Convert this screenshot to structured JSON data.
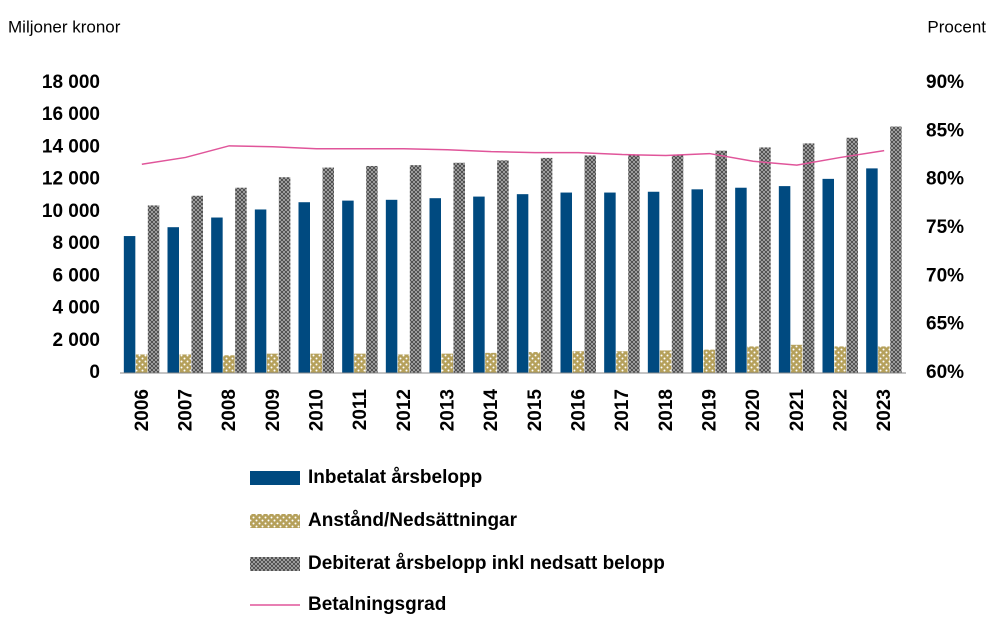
{
  "chart_data": {
    "type": "bar",
    "y_label": "Miljoner kronor",
    "y2_label": "Procent",
    "categories": [
      "2006",
      "2007",
      "2008",
      "2009",
      "2010",
      "2011",
      "2012",
      "2013",
      "2014",
      "2015",
      "2016",
      "2017",
      "2018",
      "2019",
      "2020",
      "2021",
      "2022",
      "2023"
    ],
    "series": [
      {
        "name": "Inbetalat årsbelopp",
        "type": "bar",
        "color": "#004a80",
        "values": [
          8500,
          9050,
          9650,
          10150,
          10600,
          10700,
          10750,
          10850,
          10950,
          11100,
          11200,
          11200,
          11250,
          11400,
          11500,
          11600,
          12050,
          12700
        ]
      },
      {
        "name": "Anstånd/Nedsättningar",
        "type": "bar",
        "color": "#b5a05a",
        "values": [
          1150,
          1150,
          1100,
          1200,
          1200,
          1200,
          1150,
          1200,
          1250,
          1300,
          1350,
          1350,
          1400,
          1450,
          1650,
          1750,
          1650,
          1650
        ]
      },
      {
        "name": "Debiterat årsbelopp inkl nedsatt belopp",
        "type": "bar",
        "color": "#555555",
        "values": [
          10400,
          11000,
          11500,
          12150,
          12750,
          12850,
          12900,
          13050,
          13200,
          13350,
          13500,
          13550,
          13550,
          13800,
          14000,
          14250,
          14600,
          15300
        ]
      },
      {
        "name": "Betalningsgrad",
        "type": "line",
        "axis": "y2",
        "color": "#e0559a",
        "values": [
          81.6,
          82.3,
          83.5,
          83.4,
          83.2,
          83.2,
          83.2,
          83.1,
          82.9,
          82.8,
          82.8,
          82.6,
          82.5,
          82.7,
          81.9,
          81.5,
          82.3,
          83.0
        ]
      }
    ],
    "ylim": [
      0,
      18000
    ],
    "yticks": [
      0,
      {
        "value": 2000,
        "label": "2 000"
      },
      {
        "value": 4000,
        "label": "4 000"
      },
      {
        "value": 6000,
        "label": "6 000"
      },
      {
        "value": 8000,
        "label": "8 000"
      },
      {
        "value": 10000,
        "label": "10 000"
      },
      {
        "value": 12000,
        "label": "12 000"
      },
      {
        "value": 14000,
        "label": "14 000"
      },
      {
        "value": 16000,
        "label": "16 000"
      },
      {
        "value": 18000,
        "label": "18 000"
      }
    ],
    "y2lim": [
      60,
      90
    ],
    "y2ticks": [
      {
        "value": 60,
        "label": "60%"
      },
      {
        "value": 65,
        "label": "65%"
      },
      {
        "value": 70,
        "label": "70%"
      },
      {
        "value": 75,
        "label": "75%"
      },
      {
        "value": 80,
        "label": "80%"
      },
      {
        "value": 85,
        "label": "85%"
      },
      {
        "value": 90,
        "label": "90%"
      }
    ],
    "legend": "bottom"
  }
}
